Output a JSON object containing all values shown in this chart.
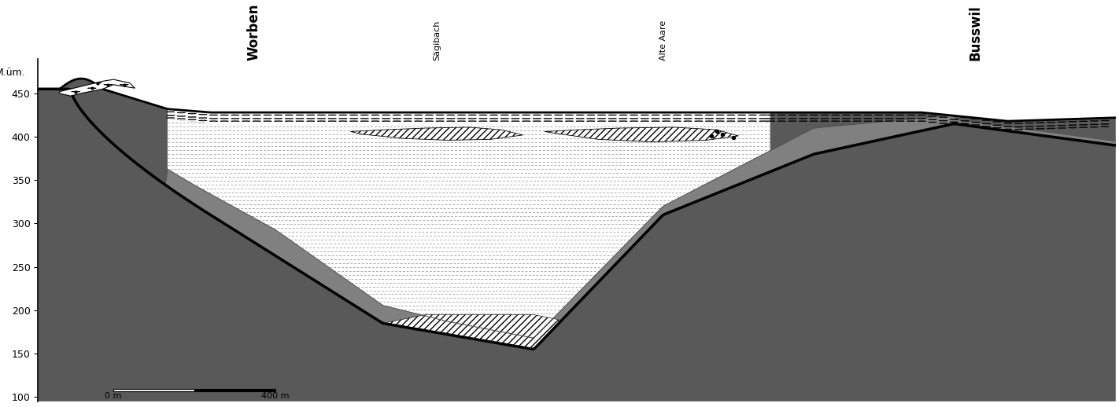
{
  "ylabel": "M.üm.",
  "ylim": [
    95,
    490
  ],
  "xlim": [
    0,
    100
  ],
  "yticks": [
    100,
    150,
    200,
    250,
    300,
    350,
    400,
    450
  ],
  "locations": [
    {
      "name": "Worben",
      "x": 20,
      "bold": true
    },
    {
      "name": "Sägibach",
      "x": 37,
      "bold": false
    },
    {
      "name": "Alte Aare",
      "x": 58,
      "bold": false
    },
    {
      "name": "Busswil",
      "x": 87,
      "bold": true
    }
  ],
  "scale_bar": {
    "x0": 7,
    "x1": 22,
    "y": 107,
    "label0": "0 m",
    "label1": "400 m"
  },
  "dark_gray": "#595959",
  "moraine_gray": "#808080"
}
